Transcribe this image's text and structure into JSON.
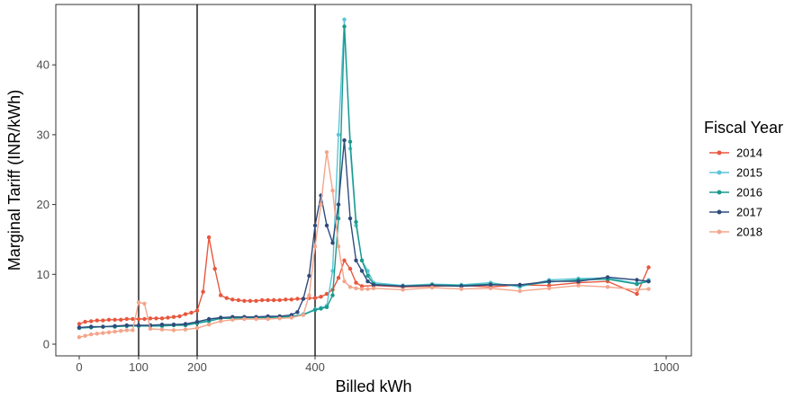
{
  "chart_data": {
    "type": "line",
    "title": "",
    "xlabel": "Billed kWh",
    "ylabel": "Marginal Tariff (INR/kWh)",
    "xlim": [
      -35,
      1040
    ],
    "ylim": [
      -1.5,
      47.5
    ],
    "x_scale": "piecewise",
    "x_ticks": [
      0,
      100,
      200,
      400,
      1000
    ],
    "x_tick_labels": [
      "0",
      "100",
      "200",
      "400",
      "1000"
    ],
    "y_ticks": [
      0,
      10,
      20,
      30,
      40
    ],
    "y_tick_labels": [
      "0",
      "10",
      "20",
      "30",
      "40"
    ],
    "vlines": [
      100,
      200,
      400
    ],
    "grid": false,
    "legend": {
      "title": "Fiscal Year",
      "position": "right",
      "entries": [
        "2014",
        "2015",
        "2016",
        "2017",
        "2018"
      ]
    },
    "series": [
      {
        "name": "2014",
        "color": "#e8573e",
        "x": [
          0,
          10,
          20,
          30,
          40,
          50,
          60,
          70,
          80,
          90,
          100,
          110,
          120,
          130,
          140,
          150,
          160,
          170,
          180,
          190,
          200,
          210,
          220,
          230,
          240,
          250,
          260,
          270,
          280,
          290,
          300,
          310,
          320,
          330,
          340,
          350,
          360,
          370,
          380,
          390,
          400,
          410,
          420,
          430,
          440,
          450,
          460,
          470,
          480,
          500,
          550,
          600,
          650,
          700,
          750,
          800,
          850,
          900,
          950,
          970
        ],
        "values": [
          2.9,
          3.2,
          3.3,
          3.4,
          3.4,
          3.5,
          3.5,
          3.5,
          3.6,
          3.6,
          3.6,
          3.6,
          3.7,
          3.7,
          3.7,
          3.8,
          3.9,
          4.0,
          4.3,
          4.5,
          4.8,
          7.5,
          15.3,
          10.8,
          7.0,
          6.6,
          6.4,
          6.3,
          6.2,
          6.2,
          6.2,
          6.3,
          6.3,
          6.3,
          6.3,
          6.4,
          6.4,
          6.5,
          6.5,
          6.6,
          6.6,
          6.8,
          7.2,
          7.8,
          9.5,
          12.0,
          10.8,
          8.8,
          8.3,
          8.4,
          8.2,
          8.3,
          8.4,
          8.2,
          8.5,
          8.4,
          8.8,
          9.0,
          7.2,
          11.0
        ]
      },
      {
        "name": "2015",
        "color": "#5bc4d6",
        "x": [
          0,
          20,
          40,
          60,
          80,
          100,
          120,
          140,
          160,
          180,
          200,
          220,
          240,
          260,
          280,
          300,
          320,
          340,
          360,
          380,
          400,
          410,
          420,
          430,
          440,
          450,
          460,
          470,
          480,
          490,
          500,
          550,
          600,
          650,
          700,
          750,
          800,
          850,
          900,
          950,
          970
        ],
        "values": [
          2.4,
          2.5,
          2.5,
          2.6,
          2.6,
          2.6,
          2.7,
          2.7,
          2.8,
          2.8,
          3.1,
          3.5,
          3.8,
          3.8,
          3.9,
          3.9,
          3.9,
          4.0,
          4.0,
          4.3,
          5.0,
          5.2,
          5.5,
          10.5,
          30.0,
          46.5,
          28.0,
          17.0,
          12.0,
          10.5,
          8.8,
          8.4,
          8.6,
          8.5,
          8.8,
          8.2,
          9.2,
          9.4,
          9.5,
          8.7,
          9.2
        ]
      },
      {
        "name": "2016",
        "color": "#1a9a8c",
        "x": [
          0,
          20,
          40,
          60,
          80,
          100,
          120,
          140,
          160,
          180,
          200,
          220,
          240,
          260,
          280,
          300,
          320,
          340,
          360,
          380,
          400,
          410,
          420,
          430,
          440,
          450,
          460,
          470,
          480,
          490,
          500,
          550,
          600,
          650,
          700,
          750,
          800,
          850,
          900,
          950,
          970
        ],
        "values": [
          2.3,
          2.4,
          2.5,
          2.5,
          2.6,
          2.6,
          2.6,
          2.6,
          2.7,
          2.7,
          3.0,
          3.3,
          3.7,
          3.7,
          3.8,
          3.8,
          3.8,
          3.9,
          3.9,
          4.2,
          4.9,
          5.1,
          5.3,
          7.0,
          18.0,
          45.5,
          29.0,
          17.5,
          12.0,
          9.8,
          8.6,
          8.3,
          8.5,
          8.4,
          8.6,
          8.4,
          8.9,
          9.2,
          9.3,
          8.6,
          9.0
        ]
      },
      {
        "name": "2017",
        "color": "#2f4b7c",
        "x": [
          0,
          20,
          40,
          60,
          80,
          100,
          120,
          140,
          160,
          180,
          200,
          220,
          240,
          260,
          280,
          300,
          320,
          340,
          360,
          370,
          380,
          390,
          400,
          410,
          420,
          430,
          440,
          450,
          460,
          470,
          480,
          490,
          500,
          550,
          600,
          650,
          700,
          750,
          800,
          850,
          900,
          950,
          970
        ],
        "values": [
          2.4,
          2.5,
          2.5,
          2.6,
          2.7,
          2.7,
          2.7,
          2.8,
          2.8,
          2.9,
          3.2,
          3.6,
          3.8,
          3.9,
          3.9,
          3.9,
          4.0,
          4.0,
          4.2,
          4.6,
          6.5,
          9.8,
          17.0,
          21.3,
          17.0,
          14.5,
          20.0,
          29.2,
          18.0,
          12.0,
          10.5,
          9.0,
          8.5,
          8.3,
          8.4,
          8.3,
          8.5,
          8.5,
          9.0,
          9.0,
          9.6,
          9.2,
          9.0
        ]
      },
      {
        "name": "2018",
        "color": "#f4a58a",
        "x": [
          0,
          10,
          20,
          30,
          40,
          50,
          60,
          70,
          80,
          90,
          100,
          110,
          120,
          140,
          160,
          180,
          200,
          220,
          240,
          260,
          280,
          300,
          320,
          340,
          360,
          380,
          390,
          400,
          410,
          420,
          430,
          440,
          450,
          460,
          470,
          480,
          490,
          500,
          550,
          600,
          650,
          700,
          750,
          800,
          850,
          900,
          950,
          970
        ],
        "values": [
          1.0,
          1.2,
          1.4,
          1.5,
          1.6,
          1.7,
          1.8,
          1.9,
          2.0,
          2.0,
          6.0,
          5.8,
          2.2,
          2.1,
          2.0,
          2.1,
          2.3,
          2.8,
          3.3,
          3.5,
          3.6,
          3.6,
          3.6,
          3.7,
          3.8,
          4.2,
          7.0,
          14.0,
          20.0,
          27.5,
          22.0,
          14.0,
          9.0,
          8.2,
          8.0,
          7.9,
          7.9,
          8.0,
          7.8,
          8.1,
          7.9,
          8.0,
          7.6,
          8.0,
          8.4,
          8.2,
          7.8,
          7.9
        ]
      }
    ]
  }
}
